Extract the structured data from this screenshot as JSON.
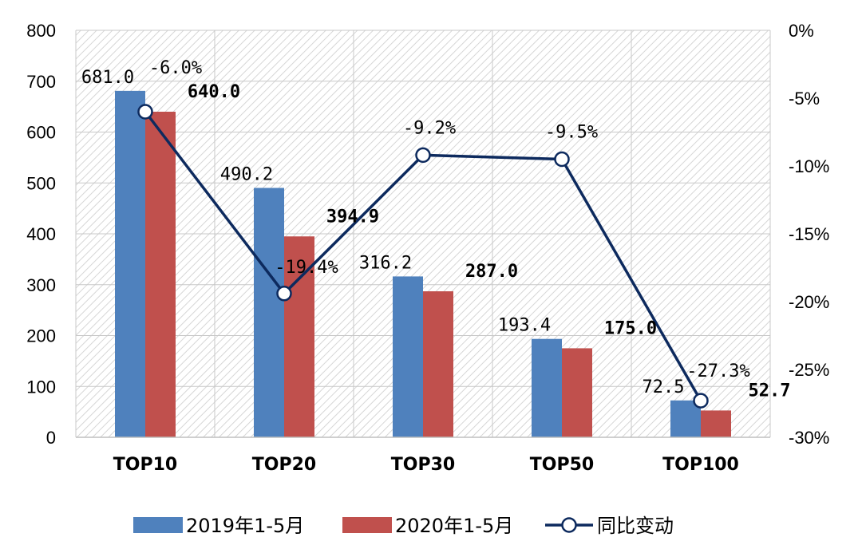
{
  "chart_data": {
    "type": "bar",
    "categories": [
      "TOP10",
      "TOP20",
      "TOP30",
      "TOP50",
      "TOP100"
    ],
    "series": [
      {
        "name": "2019年1-5月",
        "kind": "bar",
        "axis": "left",
        "color": "#4f81bd",
        "values": [
          681.0,
          490.2,
          316.2,
          193.4,
          72.5
        ],
        "labels": [
          "681.0",
          "490.2",
          "316.2",
          "193.4",
          "72.5"
        ]
      },
      {
        "name": "2020年1-5月",
        "kind": "bar",
        "axis": "left",
        "color": "#c0504d",
        "values": [
          640.0,
          394.9,
          287.0,
          175.0,
          52.7
        ],
        "labels": [
          "640.0",
          "394.9",
          "287.0",
          "175.0",
          "52.7"
        ]
      },
      {
        "name": "同比变动",
        "kind": "line",
        "axis": "right",
        "color": "#0d2a5e",
        "values": [
          -6.0,
          -19.4,
          -9.2,
          -9.5,
          -27.3
        ],
        "labels": [
          "-6.0%",
          "-19.4%",
          "-9.2%",
          "-9.5%",
          "-27.3%"
        ]
      }
    ],
    "left_axis": {
      "ylim": [
        0,
        800
      ],
      "ticks": [
        "0",
        "100",
        "200",
        "300",
        "400",
        "500",
        "600",
        "700",
        "800"
      ]
    },
    "right_axis": {
      "ylim": [
        -30,
        0
      ],
      "ticks": [
        "-30%",
        "-25%",
        "-20%",
        "-15%",
        "-10%",
        "-5%",
        "0%"
      ]
    },
    "grid": true,
    "legend": "bottom"
  }
}
